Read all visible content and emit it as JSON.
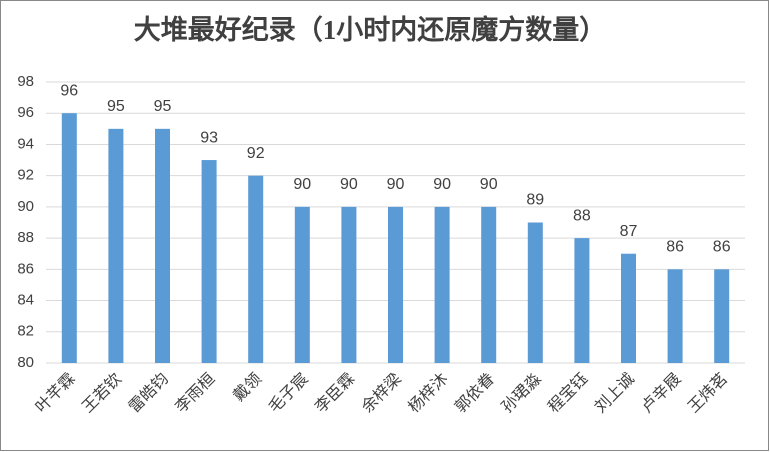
{
  "chart_data": {
    "type": "bar",
    "title": "大堆最好纪录（1小时内还原魔方数量）",
    "categories": [
      "叶芊霖",
      "王若钦",
      "雷皓钧",
      "李雨桓",
      "戴领",
      "毛子宸",
      "李臣霖",
      "余梓梁",
      "杨梓沐",
      "郭依眷",
      "孙珺淼",
      "程宝钰",
      "刘上诚",
      "卢辛屐",
      "王炜茗"
    ],
    "values": [
      96,
      95,
      95,
      93,
      92,
      90,
      90,
      90,
      90,
      90,
      89,
      88,
      87,
      86,
      86
    ],
    "color": "#5b9bd5",
    "ylim": [
      80,
      98
    ],
    "yticks": [
      80,
      82,
      84,
      86,
      88,
      90,
      92,
      94,
      96,
      98
    ],
    "grid": true
  }
}
